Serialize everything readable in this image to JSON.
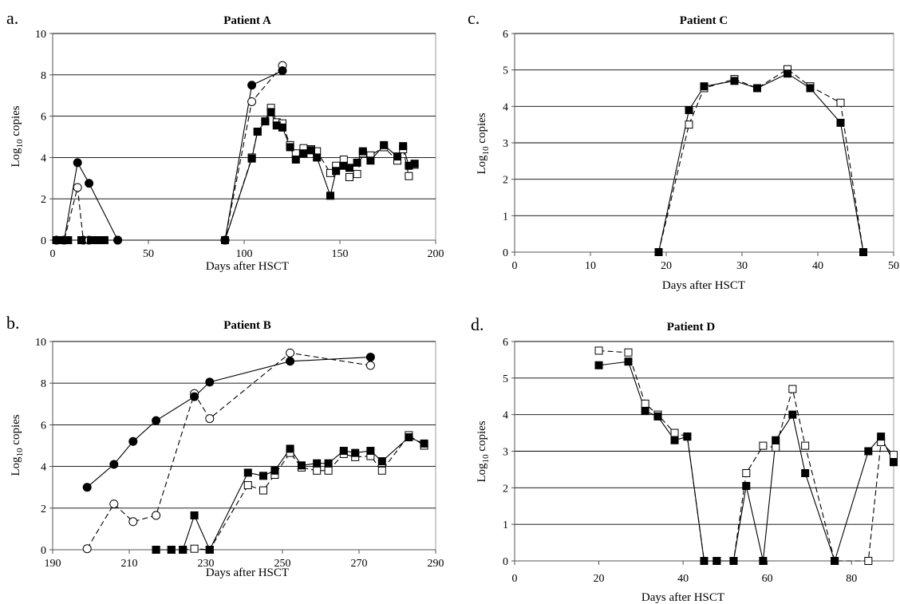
{
  "chart_data": [
    {
      "type": "line",
      "panel": "a.",
      "title": "Patient A",
      "xlabel": "Days after HSCT",
      "ylabel": "Log10 copies",
      "xlim": [
        0,
        200
      ],
      "ylim": [
        0,
        10
      ],
      "xticks": [
        0,
        50,
        100,
        150,
        200
      ],
      "yticks": [
        0,
        2,
        4,
        6,
        8,
        10
      ],
      "grid": true,
      "series": [
        {
          "marker": "circle",
          "filled": true,
          "dash": false,
          "x": [
            2,
            6,
            13,
            19,
            34,
            90,
            104,
            120
          ],
          "y": [
            0,
            0,
            3.75,
            2.75,
            0,
            0,
            7.5,
            8.2
          ]
        },
        {
          "marker": "circle",
          "filled": false,
          "dash": true,
          "x": [
            2,
            6,
            13,
            16,
            19,
            34,
            90,
            104,
            120
          ],
          "y": [
            0,
            0,
            2.55,
            0,
            0,
            0,
            0,
            6.7,
            8.45
          ]
        },
        {
          "marker": "square",
          "filled": true,
          "dash": false,
          "x": [
            2,
            4,
            8,
            15,
            20,
            24,
            27,
            90,
            104,
            107,
            111,
            114,
            117,
            120,
            124,
            127,
            131,
            135,
            138,
            145,
            148,
            152,
            155,
            159,
            162,
            166,
            173,
            180,
            183,
            186,
            189
          ],
          "y": [
            0,
            0,
            0,
            0,
            0,
            0,
            0,
            0,
            3.95,
            5.25,
            5.75,
            6.2,
            5.55,
            5.45,
            4.5,
            3.9,
            4.2,
            4.35,
            4.0,
            2.15,
            3.35,
            3.6,
            3.5,
            3.75,
            4.3,
            3.85,
            4.6,
            4.05,
            4.55,
            3.6,
            3.7
          ]
        },
        {
          "marker": "square",
          "filled": false,
          "dash": true,
          "x": [
            2,
            4,
            8,
            15,
            20,
            24,
            27,
            90,
            104,
            107,
            111,
            114,
            117,
            120,
            124,
            127,
            131,
            135,
            138,
            145,
            148,
            152,
            155,
            159,
            162,
            166,
            173,
            180,
            183,
            186,
            189
          ],
          "y": [
            0,
            0,
            0,
            0,
            0,
            0,
            0,
            0,
            4.0,
            5.25,
            5.75,
            6.4,
            5.7,
            5.65,
            4.6,
            4.2,
            4.45,
            4.4,
            4.3,
            3.25,
            3.6,
            3.9,
            3.05,
            3.2,
            4.2,
            4.1,
            4.5,
            3.85,
            4.4,
            3.1,
            3.65
          ]
        }
      ]
    },
    {
      "type": "line",
      "panel": "b.",
      "title": "Patient B",
      "xlabel": "Days after HSCT",
      "ylabel": "Log10 copies",
      "xlim": [
        190,
        290
      ],
      "ylim": [
        0,
        10
      ],
      "xticks": [
        190,
        210,
        230,
        250,
        270,
        290
      ],
      "yticks": [
        0,
        2,
        4,
        6,
        8,
        10
      ],
      "grid": true,
      "series": [
        {
          "marker": "circle",
          "filled": true,
          "dash": false,
          "x": [
            199,
            206,
            211,
            217,
            227,
            231,
            252,
            273
          ],
          "y": [
            3.0,
            4.1,
            5.2,
            6.2,
            7.35,
            8.05,
            9.05,
            9.25
          ]
        },
        {
          "marker": "circle",
          "filled": false,
          "dash": true,
          "x": [
            199,
            206,
            211,
            217,
            227,
            231,
            252,
            273
          ],
          "y": [
            0.05,
            2.2,
            1.35,
            1.65,
            7.5,
            6.3,
            9.45,
            8.85
          ]
        },
        {
          "marker": "square",
          "filled": true,
          "dash": false,
          "x": [
            217,
            221,
            224,
            227,
            231,
            241,
            245,
            248,
            252,
            255,
            259,
            262,
            266,
            269,
            273,
            276,
            283,
            287
          ],
          "y": [
            0,
            0,
            0,
            1.65,
            0,
            3.7,
            3.55,
            3.8,
            4.85,
            4.05,
            4.15,
            4.15,
            4.75,
            4.65,
            4.75,
            4.25,
            5.4,
            5.1
          ]
        },
        {
          "marker": "square",
          "filled": false,
          "dash": true,
          "x": [
            217,
            221,
            224,
            227,
            231,
            241,
            245,
            248,
            252,
            255,
            259,
            262,
            266,
            269,
            273,
            276,
            283,
            287
          ],
          "y": [
            0,
            0,
            0,
            0.05,
            0,
            3.1,
            2.85,
            3.6,
            4.65,
            3.95,
            3.8,
            3.8,
            4.6,
            4.45,
            4.5,
            3.8,
            5.5,
            5.0
          ]
        }
      ]
    },
    {
      "type": "line",
      "panel": "c.",
      "title": "Patient C",
      "xlabel": "Days after HSCT",
      "ylabel": "Log10 copies",
      "xlim": [
        0,
        50
      ],
      "ylim": [
        0,
        6
      ],
      "xticks": [
        0,
        10,
        20,
        30,
        40,
        50
      ],
      "yticks": [
        0,
        1,
        2,
        3,
        4,
        5,
        6
      ],
      "grid": true,
      "series": [
        {
          "marker": "square",
          "filled": true,
          "dash": false,
          "x": [
            19,
            23,
            25,
            29,
            32,
            36,
            39,
            43,
            46
          ],
          "y": [
            0,
            3.9,
            4.55,
            4.7,
            4.5,
            4.9,
            4.5,
            3.55,
            0
          ]
        },
        {
          "marker": "square",
          "filled": false,
          "dash": true,
          "x": [
            19,
            23,
            25,
            29,
            32,
            36,
            39,
            43,
            46
          ],
          "y": [
            0,
            3.5,
            4.5,
            4.75,
            4.5,
            5.02,
            4.55,
            4.1,
            0
          ]
        }
      ]
    },
    {
      "type": "line",
      "panel": "d.",
      "title": "Patient D",
      "xlabel": "Days after HSCT",
      "ylabel": "Log10 copies",
      "xlim": [
        0,
        90
      ],
      "ylim": [
        0,
        6
      ],
      "xticks": [
        0,
        20,
        40,
        60,
        80
      ],
      "yticks": [
        0,
        1,
        2,
        3,
        4,
        5,
        6
      ],
      "grid": true,
      "series": [
        {
          "marker": "square",
          "filled": true,
          "dash": false,
          "x": [
            20,
            27,
            31,
            34,
            38,
            41,
            45,
            48,
            52,
            55,
            59,
            62,
            66,
            69,
            76,
            84,
            87,
            90
          ],
          "y": [
            5.35,
            5.45,
            4.1,
            3.95,
            3.3,
            3.4,
            0,
            0,
            0,
            2.05,
            0,
            3.3,
            4.0,
            2.4,
            0,
            3.0,
            3.4,
            2.7
          ]
        },
        {
          "marker": "square",
          "filled": false,
          "dash": true,
          "x": [
            20,
            27,
            31,
            34,
            38,
            41,
            45,
            48,
            52,
            55,
            59,
            62,
            66,
            69,
            76,
            84,
            87,
            90
          ],
          "y": [
            5.75,
            5.7,
            4.3,
            4.0,
            3.5,
            3.4,
            0,
            0,
            0,
            2.4,
            3.15,
            3.1,
            4.7,
            3.15,
            0,
            0,
            3.25,
            2.9
          ]
        }
      ]
    }
  ]
}
